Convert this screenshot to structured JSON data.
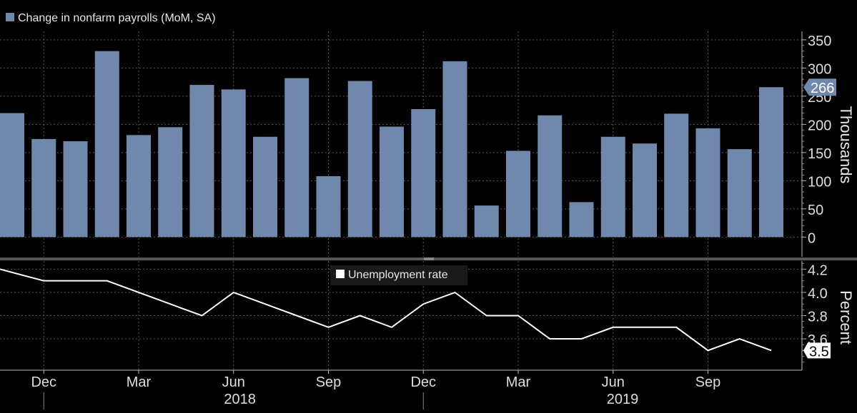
{
  "colors": {
    "background": "#000000",
    "bar": "#6f88ac",
    "line": "#ffffff",
    "grid": "#555555",
    "text": "#dddddd",
    "divider": "#555555"
  },
  "chart_data": [
    {
      "type": "bar",
      "legend": "Change in nonfarm payrolls (MoM, SA)",
      "ylabel": "Thousands",
      "ylim": [
        -35,
        365
      ],
      "yticks": [
        0,
        50,
        100,
        150,
        200,
        250,
        300,
        350
      ],
      "grid": true,
      "legend_position": "top-left",
      "last_value_label": "266",
      "categories": [
        "Nov 2017",
        "Dec 2017",
        "Jan 2018",
        "Feb 2018",
        "Mar 2018",
        "Apr 2018",
        "May 2018",
        "Jun 2018",
        "Jul 2018",
        "Aug 2018",
        "Sep 2018",
        "Oct 2018",
        "Nov 2018",
        "Dec 2018",
        "Jan 2019",
        "Feb 2019",
        "Mar 2019",
        "Apr 2019",
        "May 2019",
        "Jun 2019",
        "Jul 2019",
        "Aug 2019",
        "Sep 2019",
        "Oct 2019",
        "Nov 2019"
      ],
      "series": [
        {
          "name": "Change in nonfarm payrolls (MoM, SA)",
          "values": [
            220,
            174,
            170,
            330,
            181,
            195,
            270,
            262,
            178,
            282,
            108,
            277,
            196,
            227,
            312,
            56,
            153,
            216,
            62,
            178,
            166,
            219,
            193,
            156,
            266
          ]
        }
      ]
    },
    {
      "type": "line",
      "legend": "Unemployment rate",
      "ylabel": "Percent",
      "ylim": [
        3.33,
        4.27
      ],
      "yticks": [
        "3.6",
        "3.8",
        "4.0",
        "4.2"
      ],
      "grid": true,
      "legend_position": "top-center",
      "last_value_label": "3.5",
      "categories": [
        "Nov 2017",
        "Dec 2017",
        "Jan 2018",
        "Feb 2018",
        "Mar 2018",
        "Apr 2018",
        "May 2018",
        "Jun 2018",
        "Jul 2018",
        "Aug 2018",
        "Sep 2018",
        "Oct 2018",
        "Nov 2018",
        "Dec 2018",
        "Jan 2019",
        "Feb 2019",
        "Mar 2019",
        "Apr 2019",
        "May 2019",
        "Jun 2019",
        "Jul 2019",
        "Aug 2019",
        "Sep 2019",
        "Oct 2019",
        "Nov 2019"
      ],
      "series": [
        {
          "name": "Unemployment rate",
          "values": [
            4.2,
            4.1,
            4.1,
            4.1,
            4.0,
            3.9,
            3.8,
            4.0,
            3.9,
            3.8,
            3.7,
            3.8,
            3.7,
            3.9,
            4.0,
            3.8,
            3.8,
            3.6,
            3.6,
            3.7,
            3.7,
            3.7,
            3.5,
            3.6,
            3.5
          ]
        }
      ]
    }
  ],
  "x_axis": {
    "ticks": [
      {
        "label": "Dec",
        "index": 1
      },
      {
        "label": "Mar",
        "index": 4
      },
      {
        "label": "Jun",
        "index": 7
      },
      {
        "label": "Sep",
        "index": 10
      },
      {
        "label": "Dec",
        "index": 13
      },
      {
        "label": "Mar",
        "index": 16
      },
      {
        "label": "Jun",
        "index": 19
      },
      {
        "label": "Sep",
        "index": 22
      }
    ],
    "years": [
      {
        "label": "2018",
        "center_index": 7.2,
        "start_index": 1
      },
      {
        "label": "2019",
        "center_index": 19.3,
        "start_index": 13
      }
    ]
  }
}
